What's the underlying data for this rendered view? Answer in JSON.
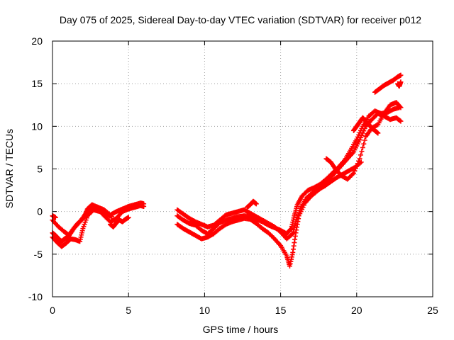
{
  "chart_data": {
    "type": "scatter",
    "title": "Day 075 of 2025, Sidereal Day-to-day VTEC variation (SDTVAR) for receiver p012",
    "xlabel": "GPS time / hours",
    "ylabel": "SDTVAR / TECUs",
    "xlim": [
      0,
      25
    ],
    "ylim": [
      -10,
      20
    ],
    "x_ticks": [
      0,
      5,
      10,
      15,
      20,
      25
    ],
    "y_ticks": [
      -10,
      -5,
      0,
      5,
      10,
      15,
      20
    ],
    "x_tick_labels": [
      "0",
      "5",
      "10",
      "15",
      "20",
      "25"
    ],
    "y_tick_labels": [
      "-10",
      "-5",
      "0",
      "5",
      "10",
      "15",
      "20"
    ],
    "grid": true,
    "grid_style": "dotted",
    "marker": "+",
    "series": [
      {
        "color": "#ff0000",
        "tracks": [
          {
            "x": [
              0.0,
              0.2,
              0.4,
              0.6,
              0.8,
              1.0,
              1.3,
              1.6,
              1.9,
              2.1,
              2.3,
              2.6,
              3.0,
              3.4,
              3.8,
              4.2,
              4.6,
              5.0,
              5.4,
              5.8,
              6.0
            ],
            "y": [
              -2.5,
              -2.8,
              -3.2,
              -3.5,
              -3.2,
              -3.0,
              -2.2,
              -1.5,
              -1.0,
              -0.6,
              0.3,
              0.8,
              0.5,
              0.2,
              -0.4,
              0.0,
              0.3,
              0.6,
              0.8,
              1.0,
              0.9
            ]
          },
          {
            "x": [
              0.0,
              0.3,
              0.6,
              0.9,
              1.2,
              1.5,
              1.8,
              2.0,
              2.3,
              2.7,
              3.1,
              3.5,
              3.9
            ],
            "y": [
              -3.0,
              -3.6,
              -4.1,
              -3.7,
              -3.2,
              -3.3,
              -3.5,
              -2.0,
              -0.5,
              0.2,
              0.0,
              -0.3,
              -0.6
            ]
          },
          {
            "x": [
              0.0,
              0.4,
              0.8,
              1.1,
              1.4,
              1.8,
              2.2,
              2.6,
              3.0,
              3.4,
              3.8,
              4.2,
              4.6,
              5.0,
              5.4,
              5.8,
              6.0
            ],
            "y": [
              -1.0,
              -1.8,
              -2.4,
              -2.8,
              -2.0,
              -1.2,
              -0.2,
              0.6,
              0.3,
              -0.5,
              -1.2,
              -0.8,
              0.0,
              0.3,
              0.5,
              0.7,
              0.6
            ]
          },
          {
            "x": [
              0.0,
              0.1,
              0.2
            ],
            "y": [
              -0.5,
              -0.6,
              -0.7
            ]
          },
          {
            "x": [
              3.8,
              4.0,
              4.2,
              4.4,
              4.6,
              4.8,
              5.0
            ],
            "y": [
              -1.5,
              -1.8,
              -1.3,
              -1.0,
              -1.2,
              -0.9,
              -0.7
            ]
          },
          {
            "x": [
              8.2,
              8.6,
              9.0,
              9.4,
              9.8,
              10.2,
              10.6,
              11.0,
              11.4,
              11.8,
              12.2,
              12.6,
              13.0,
              13.4,
              13.8,
              14.2,
              14.6,
              15.0,
              15.4,
              15.7,
              15.9,
              16.1,
              16.4,
              16.8,
              17.2,
              17.6,
              18.0,
              18.4,
              18.8,
              19.2,
              19.6,
              20.0,
              20.4,
              20.8,
              21.2,
              21.6,
              22.0,
              22.4,
              22.8
            ],
            "y": [
              -0.5,
              -1.0,
              -1.4,
              -1.6,
              -2.2,
              -2.6,
              -2.0,
              -1.3,
              -1.0,
              -0.8,
              -0.6,
              -0.5,
              -0.6,
              -0.9,
              -1.2,
              -1.6,
              -1.9,
              -2.2,
              -2.6,
              -2.0,
              -0.5,
              0.8,
              1.8,
              2.5,
              2.8,
              3.2,
              3.8,
              4.5,
              5.2,
              6.0,
              7.2,
              8.5,
              10.0,
              11.2,
              11.8,
              11.5,
              11.6,
              12.0,
              12.2
            ]
          },
          {
            "x": [
              8.2,
              8.6,
              9.0,
              9.4,
              9.8,
              10.2,
              10.6,
              11.0,
              11.4,
              11.8,
              12.2,
              12.6,
              13.0,
              13.4,
              13.8,
              14.2,
              14.6,
              15.0,
              15.4,
              15.6,
              15.8,
              16.0,
              16.2,
              16.6,
              17.0,
              17.4,
              17.8,
              18.2,
              18.6,
              19.0,
              19.4,
              19.8,
              20.2,
              20.6,
              21.0,
              21.4,
              21.8,
              22.2,
              22.6,
              22.9
            ],
            "y": [
              -1.5,
              -2.0,
              -2.4,
              -2.8,
              -3.2,
              -3.0,
              -2.6,
              -2.0,
              -1.5,
              -1.2,
              -1.0,
              -0.8,
              -0.9,
              -1.4,
              -2.0,
              -2.5,
              -3.2,
              -4.0,
              -5.2,
              -6.4,
              -4.8,
              -2.5,
              -0.5,
              1.0,
              1.8,
              2.4,
              3.0,
              3.8,
              4.6,
              5.4,
              6.2,
              7.0,
              8.4,
              10.0,
              10.8,
              11.5,
              11.2,
              10.8,
              11.0,
              10.6
            ]
          },
          {
            "x": [
              8.2,
              8.6,
              9.0,
              9.4,
              9.8,
              10.2,
              10.6,
              11.0,
              11.4,
              11.8,
              12.2,
              12.6,
              13.0,
              13.4,
              13.8,
              14.2,
              14.6,
              15.0,
              15.4,
              15.8,
              16.0,
              16.3,
              16.7,
              17.1,
              17.5,
              17.9,
              18.3,
              18.7,
              19.1,
              19.5,
              19.9,
              20.3
            ],
            "y": [
              0.2,
              -0.3,
              -0.8,
              -1.2,
              -1.5,
              -1.8,
              -1.6,
              -1.0,
              -0.4,
              -0.2,
              0.0,
              0.2,
              -0.2,
              -0.6,
              -1.0,
              -1.4,
              -1.8,
              -2.4,
              -3.2,
              -2.6,
              -1.2,
              0.4,
              1.6,
              2.2,
              2.6,
              3.0,
              3.5,
              4.0,
              4.4,
              4.8,
              5.2,
              5.8
            ]
          },
          {
            "x": [
              12.8,
              13.0,
              13.2,
              13.4
            ],
            "y": [
              0.5,
              0.8,
              1.2,
              0.9
            ]
          },
          {
            "x": [
              18.0,
              18.3,
              18.6,
              19.0,
              19.4,
              19.8,
              20.2,
              20.6,
              21.0,
              21.4,
              21.8,
              22.2,
              22.6,
              22.9
            ],
            "y": [
              6.2,
              5.8,
              5.0,
              4.2,
              3.8,
              4.5,
              6.2,
              8.8,
              9.8,
              10.2,
              11.5,
              12.5,
              12.8,
              12.2
            ]
          },
          {
            "x": [
              21.2,
              21.5,
              21.8,
              22.1,
              22.4,
              22.7,
              22.9
            ],
            "y": [
              14.0,
              14.4,
              14.8,
              15.1,
              15.4,
              15.8,
              16.0
            ]
          },
          {
            "x": [
              22.7,
              22.8,
              22.9
            ],
            "y": [
              15.0,
              14.7,
              15.2
            ]
          },
          {
            "x": [
              19.8,
              20.0,
              20.2,
              20.4,
              20.6,
              20.8,
              21.0,
              21.2,
              21.4
            ],
            "y": [
              9.5,
              10.0,
              10.5,
              11.0,
              10.6,
              10.2,
              9.8,
              9.5,
              9.2
            ]
          }
        ]
      }
    ]
  }
}
